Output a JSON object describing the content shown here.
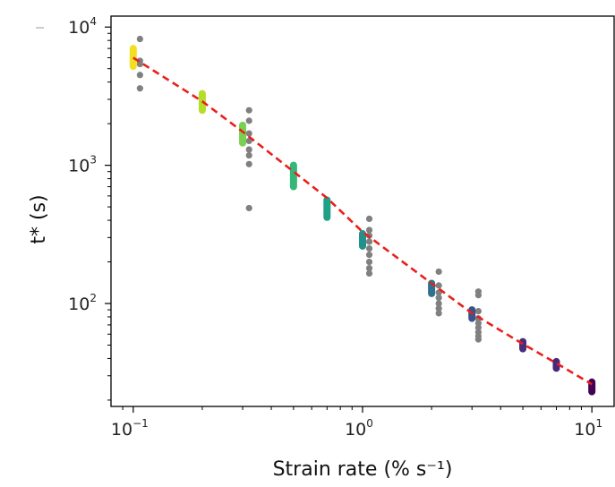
{
  "chart_data": {
    "type": "scatter",
    "title": "",
    "xlabel": "Strain rate (% s⁻¹)",
    "ylabel": "t* (s)",
    "x_scale": "log",
    "y_scale": "log",
    "xlim": [
      0.08,
      12.5
    ],
    "ylim": [
      18,
      12000
    ],
    "x_ticks": [
      {
        "value": 0.1,
        "base": "10",
        "exp": "−1"
      },
      {
        "value": 1,
        "base": "10",
        "exp": "0"
      },
      {
        "value": 10,
        "base": "10",
        "exp": "1"
      }
    ],
    "y_ticks": [
      {
        "value": 100,
        "base": "10",
        "exp": "2"
      },
      {
        "value": 1000,
        "base": "10",
        "exp": "3"
      },
      {
        "value": 10000,
        "base": "10",
        "exp": "4"
      }
    ],
    "grid": false,
    "legend": "none",
    "colors": {
      "gray": "#808080",
      "fit": "#e8201c"
    },
    "series": [
      {
        "style": "colored",
        "points": [
          {
            "x": 0.1,
            "y_min": 5200,
            "y_max": 7000,
            "color": "#f2df1f"
          },
          {
            "x": 0.2,
            "y_min": 2500,
            "y_max": 3300,
            "color": "#b5de2b"
          },
          {
            "x": 0.3,
            "y_min": 1450,
            "y_max": 1950,
            "color": "#7ad151"
          },
          {
            "x": 0.5,
            "y_min": 700,
            "y_max": 1000,
            "color": "#35b779"
          },
          {
            "x": 0.7,
            "y_min": 420,
            "y_max": 560,
            "color": "#1fa187"
          },
          {
            "x": 1.0,
            "y_min": 260,
            "y_max": 320,
            "color": "#21918c"
          },
          {
            "x": 2.0,
            "y_min": 118,
            "y_max": 140,
            "color": "#2c728e"
          },
          {
            "x": 3.0,
            "y_min": 78,
            "y_max": 90,
            "color": "#3b528b"
          },
          {
            "x": 5.0,
            "y_min": 47,
            "y_max": 53,
            "color": "#472d7b"
          },
          {
            "x": 7.0,
            "y_min": 34,
            "y_max": 38,
            "color": "#482878"
          },
          {
            "x": 10.0,
            "y_min": 23,
            "y_max": 27,
            "color": "#440154"
          }
        ]
      },
      {
        "style": "gray",
        "points": [
          {
            "x": 0.107,
            "y": 8200
          },
          {
            "x": 0.107,
            "y": 5700
          },
          {
            "x": 0.107,
            "y": 5400
          },
          {
            "x": 0.107,
            "y": 4500
          },
          {
            "x": 0.107,
            "y": 3600
          },
          {
            "x": 0.32,
            "y": 2500
          },
          {
            "x": 0.32,
            "y": 2100
          },
          {
            "x": 0.32,
            "y": 1700
          },
          {
            "x": 0.32,
            "y": 1500
          },
          {
            "x": 0.32,
            "y": 1300
          },
          {
            "x": 0.32,
            "y": 1180
          },
          {
            "x": 0.32,
            "y": 1020
          },
          {
            "x": 0.32,
            "y": 490
          },
          {
            "x": 1.07,
            "y": 410
          },
          {
            "x": 1.07,
            "y": 340
          },
          {
            "x": 1.07,
            "y": 310
          },
          {
            "x": 1.07,
            "y": 280
          },
          {
            "x": 1.07,
            "y": 250
          },
          {
            "x": 1.07,
            "y": 225
          },
          {
            "x": 1.07,
            "y": 200
          },
          {
            "x": 1.07,
            "y": 180
          },
          {
            "x": 1.07,
            "y": 165
          },
          {
            "x": 2.15,
            "y": 170
          },
          {
            "x": 2.15,
            "y": 135
          },
          {
            "x": 2.15,
            "y": 120
          },
          {
            "x": 2.15,
            "y": 110
          },
          {
            "x": 2.15,
            "y": 100
          },
          {
            "x": 2.15,
            "y": 92
          },
          {
            "x": 2.15,
            "y": 85
          },
          {
            "x": 3.2,
            "y": 122
          },
          {
            "x": 3.2,
            "y": 115
          },
          {
            "x": 3.2,
            "y": 88
          },
          {
            "x": 3.2,
            "y": 78
          },
          {
            "x": 3.2,
            "y": 72
          },
          {
            "x": 3.2,
            "y": 67
          },
          {
            "x": 3.2,
            "y": 62
          },
          {
            "x": 3.2,
            "y": 58
          },
          {
            "x": 3.2,
            "y": 55
          }
        ]
      },
      {
        "style": "fit-line",
        "x": [
          0.1,
          0.2,
          0.3,
          0.5,
          0.7,
          1.0,
          2.0,
          3.0,
          5.0,
          7.0,
          10.0
        ],
        "y": [
          6000,
          2900,
          1750,
          900,
          580,
          330,
          140,
          85,
          51,
          37,
          26
        ]
      }
    ]
  }
}
